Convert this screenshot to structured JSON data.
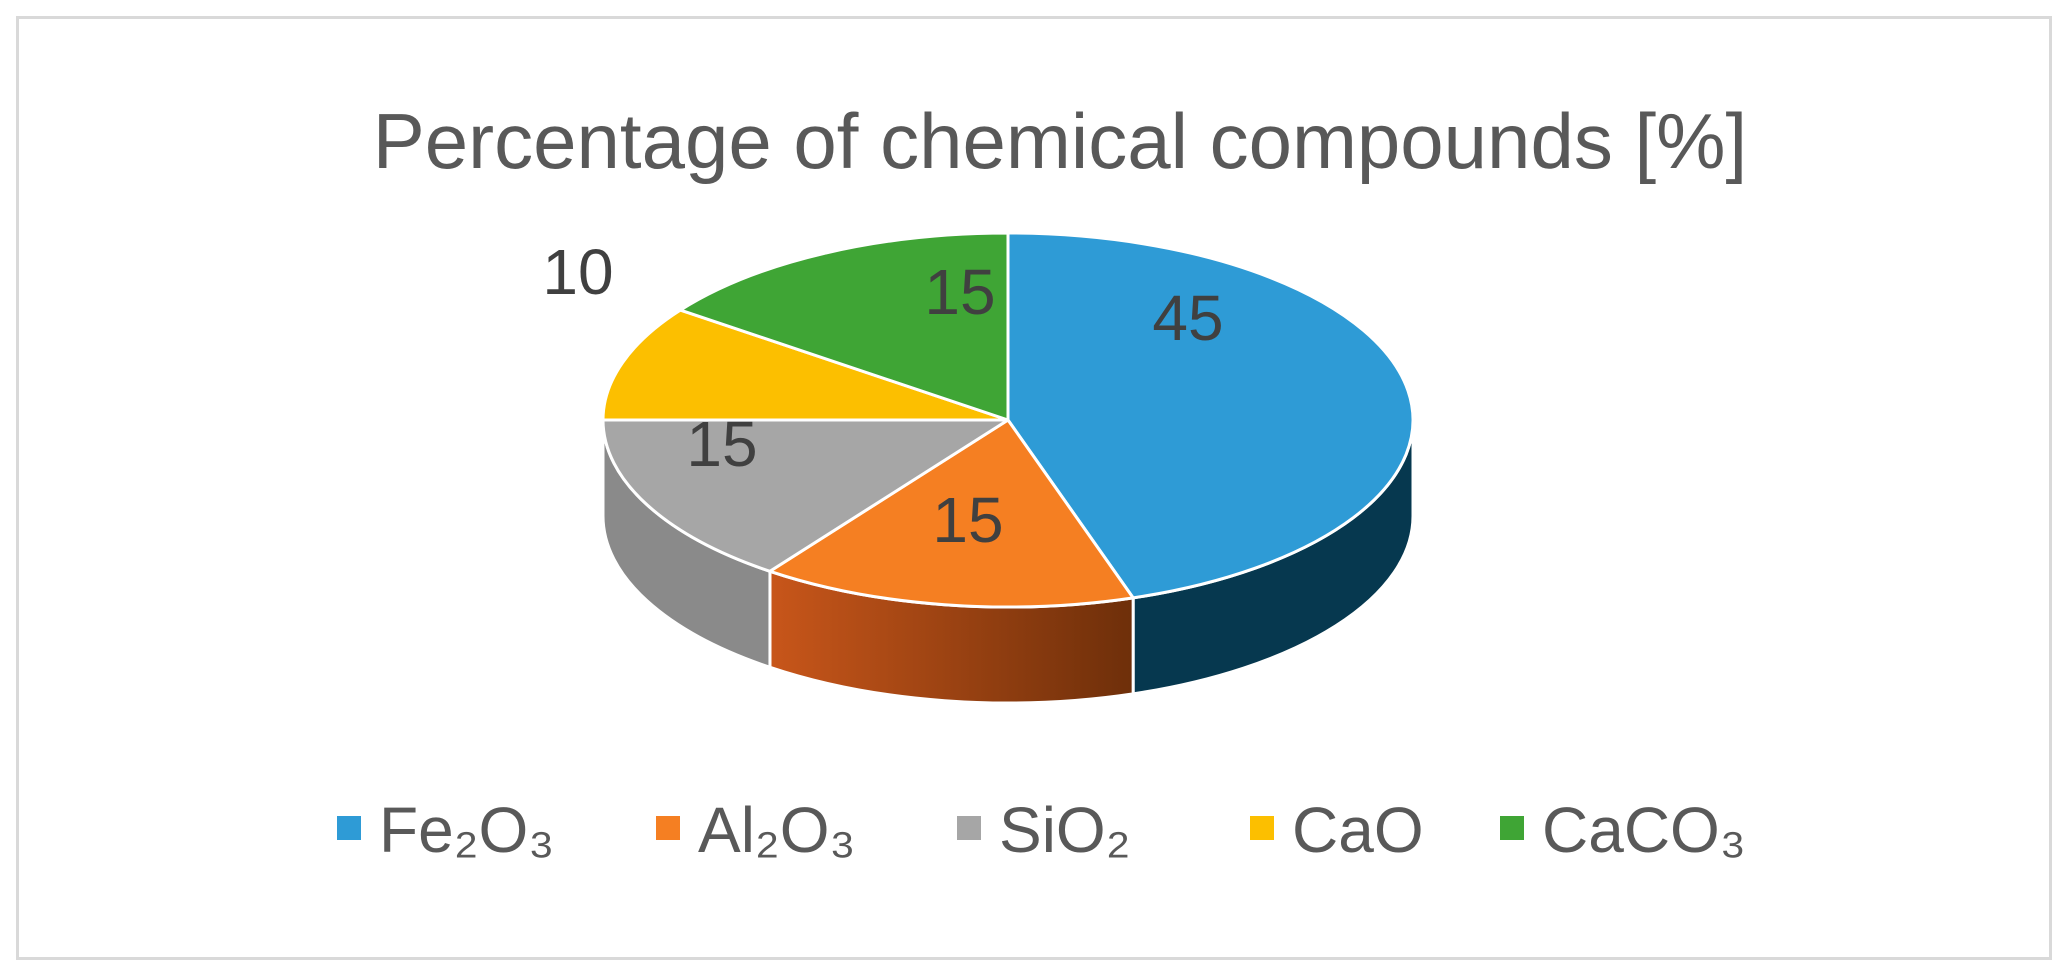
{
  "chart_data": {
    "type": "pie",
    "title": "Percentage of chemical compounds [%]",
    "categories": [
      "Fe₂O₃",
      "Al₂O₃",
      "SiO₂",
      "CaO",
      "CaCO₃"
    ],
    "values": [
      45,
      15,
      15,
      10,
      15
    ],
    "data_labels": [
      "45",
      "15",
      "15",
      "10",
      "15"
    ],
    "colors": [
      "#2e9bd6",
      "#f57f22",
      "#a6a6a6",
      "#fcbf00",
      "#3fa535"
    ],
    "legend": {
      "position": "bottom",
      "entries": [
        "Fe₂O₃",
        "Al₂O₃",
        "SiO₂",
        "CaO",
        "CaCO₃"
      ]
    }
  }
}
